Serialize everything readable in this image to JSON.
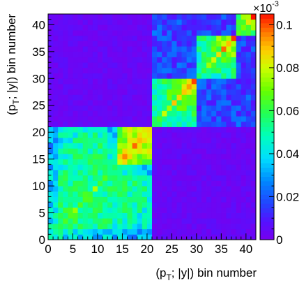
{
  "chart_data": {
    "type": "heatmap",
    "x_axis": {
      "label": "(p_T; |y|) bin number",
      "label_main": "(p",
      "label_sub": "T",
      "label_tail": "; |y|) bin number",
      "range": [
        0,
        42
      ],
      "ticks": [
        0,
        5,
        10,
        15,
        20,
        25,
        30,
        35,
        40
      ],
      "tick_labels": [
        "0",
        "5",
        "10",
        "15",
        "20",
        "25",
        "30",
        "35",
        "40"
      ]
    },
    "y_axis": {
      "label": "(p_T; |y|) bin number",
      "label_main": "(p",
      "label_sub": "T",
      "label_tail": "; |y|) bin number",
      "range": [
        0,
        42
      ],
      "ticks": [
        0,
        5,
        10,
        15,
        20,
        25,
        30,
        35,
        40
      ],
      "tick_labels": [
        "0",
        "5",
        "10",
        "15",
        "20",
        "25",
        "30",
        "35",
        "40"
      ]
    },
    "color_scale": {
      "multiplier_base": "×10",
      "multiplier_exp": "-3",
      "range": [
        0,
        0.105
      ],
      "ticks": [
        0,
        0.02,
        0.04,
        0.06,
        0.08,
        0.1
      ],
      "tick_labels": [
        "0",
        "0.02",
        "0.04",
        "0.06",
        "0.08",
        "0.1"
      ],
      "palette": "ROOT rainbow: purple-blue-cyan-green-yellow-orange-red"
    },
    "blocks": [
      {
        "bins_x": [
          0,
          20
        ],
        "bins_y": [
          0,
          20
        ],
        "typical_value": 0.05,
        "peak_value": 0.09
      },
      {
        "bins_x": [
          21,
          29
        ],
        "bins_y": [
          21,
          29
        ],
        "typical_value": 0.06,
        "peak_value": 0.1
      },
      {
        "bins_x": [
          30,
          37
        ],
        "bins_y": [
          30,
          37
        ],
        "typical_value": 0.06,
        "peak_value": 0.1
      },
      {
        "bins_x": [
          38,
          41
        ],
        "bins_y": [
          38,
          41
        ],
        "typical_value": 0.055,
        "peak_value": 0.1
      },
      {
        "bins_x": [
          21,
          41
        ],
        "bins_y": [
          21,
          41
        ],
        "typical_value": 0.015,
        "note": "off-diagonal region between high-bin sub-blocks"
      },
      {
        "bins_x": [
          0,
          20
        ],
        "bins_y": [
          21,
          41
        ],
        "typical_value": 0.003,
        "note": "near zero"
      },
      {
        "bins_x": [
          21,
          41
        ],
        "bins_y": [
          0,
          20
        ],
        "typical_value": 0.003,
        "note": "near zero"
      }
    ],
    "grid": false,
    "legend": "color bar on right"
  }
}
